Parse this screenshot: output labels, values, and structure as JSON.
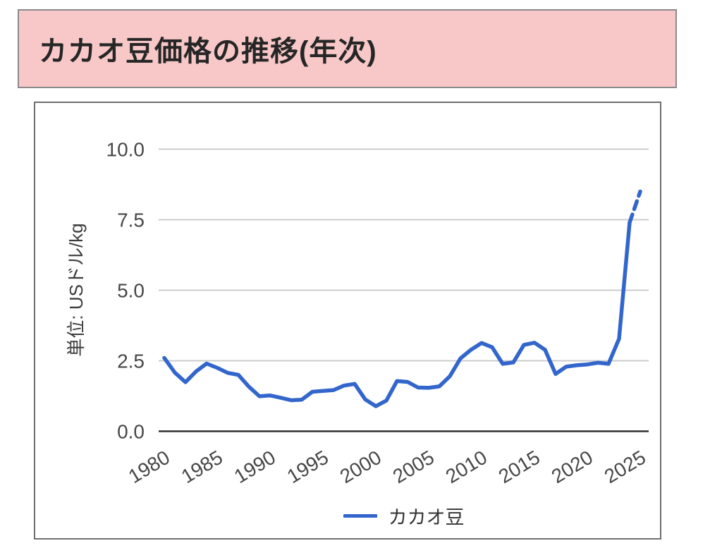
{
  "header": {
    "title": "カカオ豆価格の推移(年次)",
    "bg_color": "#f8c8c8",
    "border_color": "#8a8a8a"
  },
  "chart_data": {
    "type": "line",
    "title": "カカオ豆価格の推移(年次)",
    "ylabel": "単位: USドル/kg",
    "xlabel": "",
    "ylim": [
      0,
      10
    ],
    "ytick_values": [
      0,
      2.5,
      5,
      7.5,
      10
    ],
    "ytick_labels": [
      "0.0",
      "2.5",
      "5.0",
      "7.5",
      "10.0"
    ],
    "xtick_values": [
      1980,
      1985,
      1990,
      1995,
      2000,
      2005,
      2010,
      2015,
      2020,
      2025
    ],
    "grid": "horizontal",
    "legend_position": "bottom",
    "series": [
      {
        "name": "カカオ豆",
        "color": "#3366cc",
        "dashed_from_x": 2024,
        "x": [
          1980,
          1981,
          1982,
          1983,
          1984,
          1985,
          1986,
          1987,
          1988,
          1989,
          1990,
          1991,
          1992,
          1993,
          1994,
          1995,
          1996,
          1997,
          1998,
          1999,
          2000,
          2001,
          2002,
          2003,
          2004,
          2005,
          2006,
          2007,
          2008,
          2009,
          2010,
          2011,
          2012,
          2013,
          2014,
          2015,
          2016,
          2017,
          2018,
          2019,
          2020,
          2021,
          2022,
          2023,
          2024,
          2025
        ],
        "values": [
          2.6,
          2.08,
          1.74,
          2.12,
          2.4,
          2.25,
          2.07,
          2.0,
          1.58,
          1.24,
          1.27,
          1.19,
          1.1,
          1.12,
          1.4,
          1.43,
          1.46,
          1.62,
          1.68,
          1.13,
          0.89,
          1.09,
          1.78,
          1.75,
          1.55,
          1.54,
          1.59,
          1.95,
          2.58,
          2.89,
          3.13,
          2.98,
          2.39,
          2.44,
          3.06,
          3.14,
          2.89,
          2.03,
          2.29,
          2.34,
          2.37,
          2.43,
          2.39,
          3.28,
          7.4,
          8.5
        ]
      }
    ],
    "colors": {
      "gridline": "#cccccc",
      "axis_line": "#333333",
      "tick_label": "#474747",
      "series_line": "#3366cc"
    }
  }
}
